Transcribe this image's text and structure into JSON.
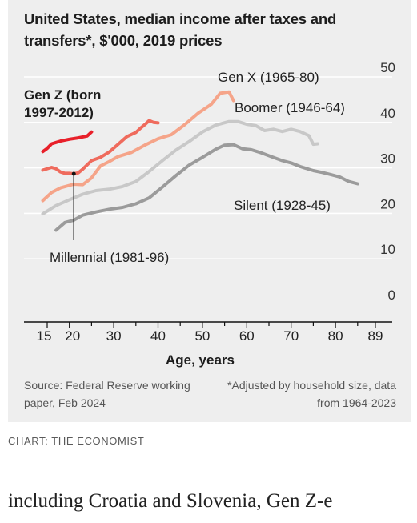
{
  "chart_data": {
    "type": "line",
    "title": "United States, median income after taxes and transfers*, $'000, 2019 prices",
    "xlabel": "Age, years",
    "ylabel": "",
    "xlim": [
      14,
      89
    ],
    "ylim": [
      0,
      50
    ],
    "x_ticks": [
      15,
      20,
      30,
      40,
      50,
      60,
      70,
      80,
      89
    ],
    "y_ticks": [
      0,
      10,
      20,
      30,
      40,
      50
    ],
    "y_axis_side": "right",
    "grid": true,
    "series": [
      {
        "name": "Silent (1928-45)",
        "color": "#9b9b9b",
        "points": [
          [
            17,
            16.3
          ],
          [
            19,
            18.0
          ],
          [
            21,
            18.5
          ],
          [
            23,
            19.6
          ],
          [
            26,
            20.3
          ],
          [
            29,
            20.9
          ],
          [
            32,
            21.3
          ],
          [
            35,
            22.1
          ],
          [
            38,
            23.4
          ],
          [
            41,
            25.8
          ],
          [
            44,
            28.3
          ],
          [
            47,
            30.6
          ],
          [
            50,
            32.3
          ],
          [
            53,
            34.1
          ],
          [
            55,
            35.0
          ],
          [
            57,
            35.1
          ],
          [
            59,
            34.2
          ],
          [
            61,
            34.0
          ],
          [
            63,
            33.4
          ],
          [
            66,
            32.3
          ],
          [
            68,
            31.6
          ],
          [
            70,
            31.1
          ],
          [
            72,
            30.3
          ],
          [
            75,
            29.4
          ],
          [
            77,
            29.0
          ],
          [
            79,
            28.5
          ],
          [
            81,
            28.0
          ],
          [
            83,
            27.0
          ],
          [
            85,
            26.5
          ]
        ]
      },
      {
        "name": "Boomer (1946-64)",
        "color": "#c8c8c8",
        "points": [
          [
            14,
            19.9
          ],
          [
            17,
            21.7
          ],
          [
            20,
            23.0
          ],
          [
            23,
            24.2
          ],
          [
            26,
            25.0
          ],
          [
            29,
            25.3
          ],
          [
            32,
            25.9
          ],
          [
            35,
            27.0
          ],
          [
            38,
            29.2
          ],
          [
            41,
            31.6
          ],
          [
            44,
            33.9
          ],
          [
            47,
            35.8
          ],
          [
            50,
            37.9
          ],
          [
            53,
            39.4
          ],
          [
            56,
            40.2
          ],
          [
            58,
            40.2
          ],
          [
            60,
            39.6
          ],
          [
            62,
            39.3
          ],
          [
            64,
            38.2
          ],
          [
            66,
            38.5
          ],
          [
            68,
            38.0
          ],
          [
            70,
            38.5
          ],
          [
            72,
            38.0
          ],
          [
            74,
            37.1
          ],
          [
            75,
            35.2
          ],
          [
            76,
            35.3
          ]
        ]
      },
      {
        "name": "Gen X (1965-80)",
        "color": "#f5a489",
        "points": [
          [
            14,
            22.8
          ],
          [
            16,
            24.6
          ],
          [
            18,
            25.6
          ],
          [
            21,
            26.4
          ],
          [
            23,
            26.3
          ],
          [
            25,
            27.8
          ],
          [
            27,
            30.4
          ],
          [
            29,
            31.4
          ],
          [
            31,
            32.5
          ],
          [
            34,
            33.4
          ],
          [
            37,
            35.0
          ],
          [
            40,
            36.4
          ],
          [
            43,
            37.3
          ],
          [
            46,
            39.5
          ],
          [
            49,
            42.0
          ],
          [
            52,
            44.0
          ],
          [
            54,
            46.4
          ],
          [
            56,
            46.7
          ],
          [
            57,
            44.8
          ]
        ]
      },
      {
        "name": "Millennial (1981-96)",
        "color": "#ef6b5d",
        "points": [
          [
            14,
            29.5
          ],
          [
            16,
            30.1
          ],
          [
            17,
            29.8
          ],
          [
            18,
            29.1
          ],
          [
            19,
            28.8
          ],
          [
            20,
            28.8
          ],
          [
            21,
            28.7
          ],
          [
            22,
            28.9
          ],
          [
            23,
            29.7
          ],
          [
            25,
            31.6
          ],
          [
            27,
            32.3
          ],
          [
            29,
            33.5
          ],
          [
            31,
            35.2
          ],
          [
            33,
            36.9
          ],
          [
            35,
            37.8
          ],
          [
            36,
            38.7
          ],
          [
            37,
            39.5
          ],
          [
            38,
            40.4
          ],
          [
            39,
            40.0
          ],
          [
            40,
            39.9
          ]
        ]
      },
      {
        "name": "Gen Z (born 1997-2012)",
        "color": "#e8202a",
        "points": [
          [
            14,
            33.6
          ],
          [
            15,
            34.3
          ],
          [
            16,
            35.3
          ],
          [
            17,
            35.6
          ],
          [
            18,
            35.9
          ],
          [
            20,
            36.3
          ],
          [
            22,
            36.6
          ],
          [
            24,
            37.0
          ],
          [
            25,
            37.9
          ]
        ]
      }
    ],
    "annotations": [
      "Gen Z (born 1997-2012)",
      "Millennial (1981-96)",
      "Gen X (1965-80)",
      "Boomer (1946-64)",
      "Silent (1928-45)"
    ]
  },
  "source_text": "Source: Federal Reserve working paper, Feb 2024",
  "footnote_text": "*Adjusted by household size, data from 1964-2023",
  "credit": "CHART: THE ECONOMIST",
  "body_text": "including Croatia and Slovenia, Gen Z-e"
}
